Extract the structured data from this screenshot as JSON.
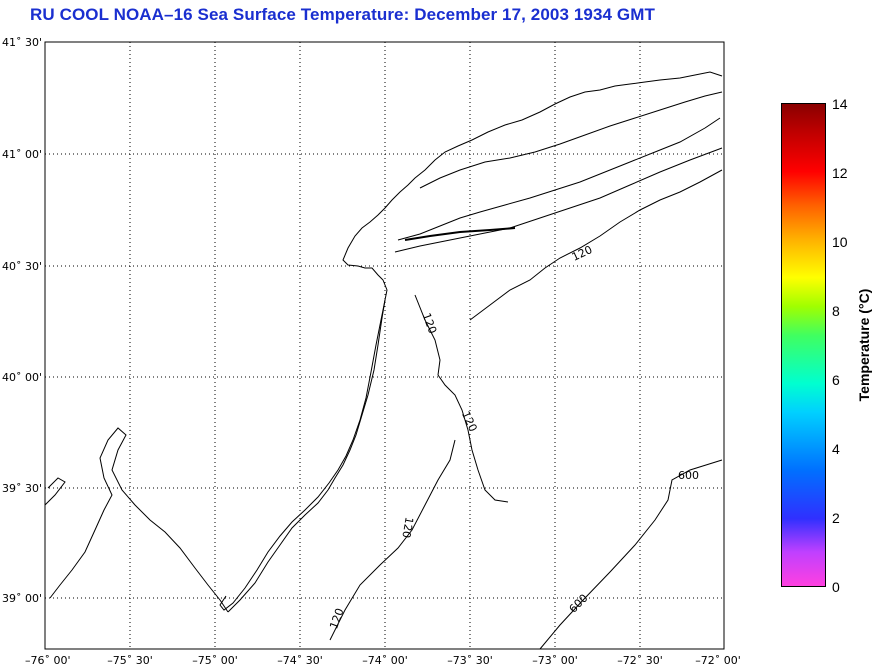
{
  "title": "RU COOL  NOAA–16  Sea Surface Temperature:  December 17, 2003 1934 GMT",
  "map": {
    "lat_labels": [
      "41˚ 30'",
      "41˚ 00'",
      "40˚ 30'",
      "40˚ 00'",
      "39˚ 30'",
      "39˚ 00'"
    ],
    "lon_labels": [
      "–76˚ 00'",
      "–75˚ 30'",
      "–75˚ 00'",
      "–74˚ 30'",
      "–74˚ 00'",
      "–73˚ 30'",
      "–73˚ 00'",
      "–72˚ 30'",
      "–72˚ 00'"
    ],
    "contour_labels": [
      "120",
      "120",
      "120",
      "120",
      "120",
      "600",
      "600"
    ]
  },
  "colorbar": {
    "title": "Temperature (°C)",
    "ticks": [
      "14",
      "12",
      "10",
      "8",
      "6",
      "4",
      "2",
      "0"
    ]
  },
  "colors": {
    "title": "#1a2fd0",
    "grid": "#000000"
  }
}
